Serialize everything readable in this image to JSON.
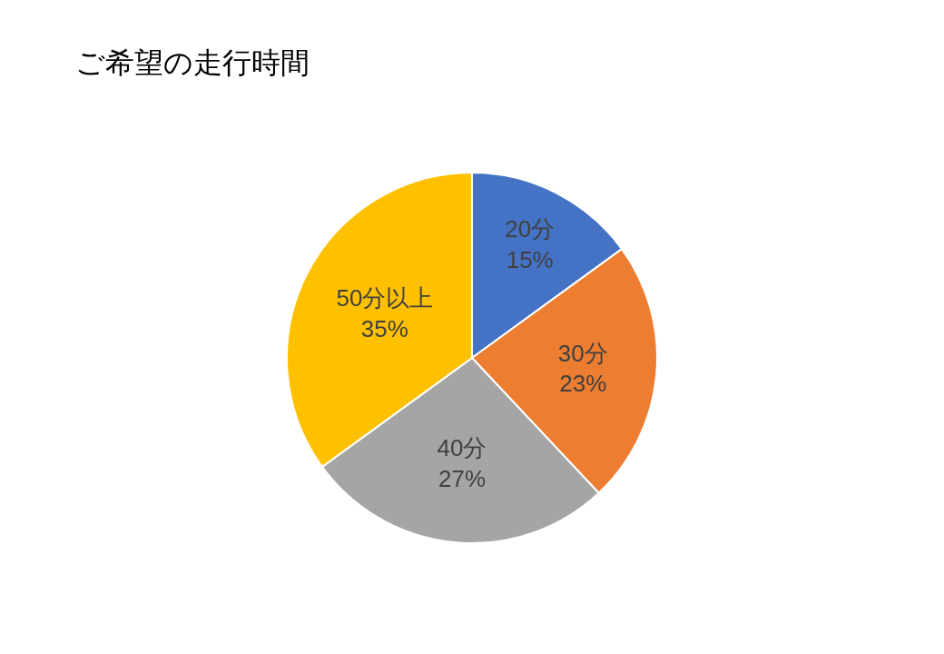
{
  "chart_data": {
    "type": "pie",
    "title": "ご希望の走行時間",
    "categories": [
      "20分",
      "30分",
      "40分",
      "50分以上"
    ],
    "values": [
      15,
      23,
      27,
      35
    ],
    "value_labels": [
      "15%",
      "23%",
      "27%",
      "35%"
    ],
    "colors": [
      "#4472c4",
      "#ed7d31",
      "#a5a5a5",
      "#ffc000"
    ],
    "legend": false
  }
}
